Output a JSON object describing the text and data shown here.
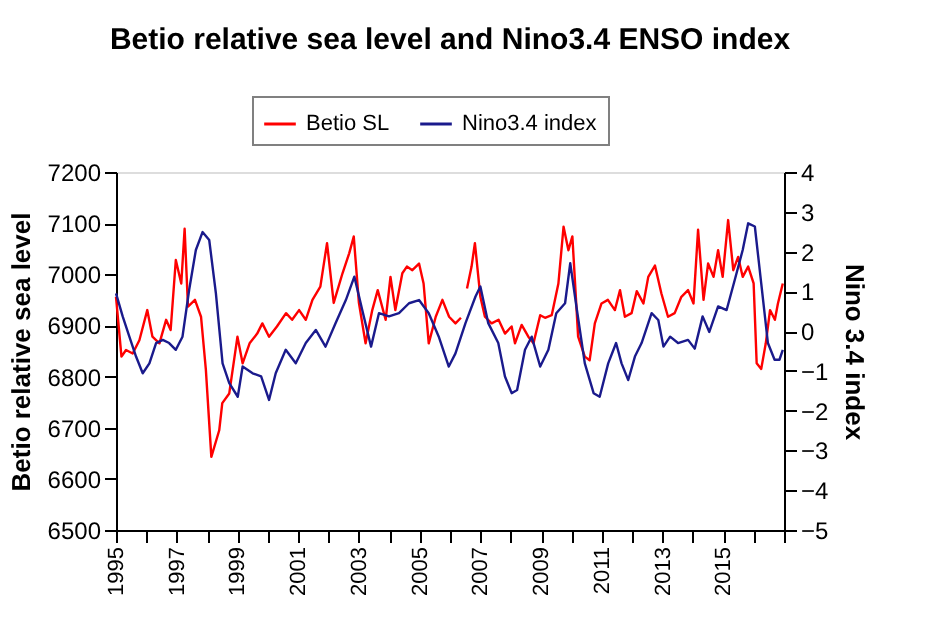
{
  "chart_data": {
    "type": "line",
    "title": "Betio relative sea level and Nino3.4 ENSO index",
    "ylabel": "Betio relative sea level",
    "y2label": "Nino 3.4 index",
    "xlim": [
      1995,
      2017
    ],
    "xticks": [
      1995,
      {
        "value": 1996,
        "label": null
      },
      1997,
      {
        "value": 1998,
        "label": null
      },
      1999,
      {
        "value": 2000,
        "label": null
      },
      2001,
      {
        "value": 2002,
        "label": null
      },
      2003,
      {
        "value": 2004,
        "label": null
      },
      2005,
      {
        "value": 2006,
        "label": null
      },
      2007,
      {
        "value": 2008,
        "label": null
      },
      2009,
      {
        "value": 2010,
        "label": null
      },
      2011,
      {
        "value": 2012,
        "label": null
      },
      2013,
      {
        "value": 2014,
        "label": null
      },
      2015,
      {
        "value": 2016,
        "label": null
      },
      {
        "value": 2017,
        "label": null
      }
    ],
    "ylim": [
      6500,
      7200
    ],
    "yticks": [
      6500,
      6600,
      6700,
      6800,
      6900,
      7000,
      7100,
      7200
    ],
    "y2lim": [
      -5,
      4
    ],
    "y2ticks": [
      -5,
      -4,
      -3,
      -2,
      -1,
      0,
      1,
      2,
      3,
      4
    ],
    "legend": "top",
    "grid": false,
    "series": [
      {
        "name": "Betio SL",
        "color": "#ff0000",
        "x": [
          1995.0,
          1995.18,
          1995.33,
          1995.55,
          1995.77,
          1996.03,
          1996.2,
          1996.43,
          1996.65,
          1996.8,
          1996.97,
          1997.15,
          1997.26,
          1997.37,
          1997.6,
          1997.8,
          1997.96,
          1998.14,
          1998.4,
          1998.5,
          1998.73,
          1999.0,
          1999.17,
          1999.4,
          1999.65,
          1999.82,
          2000.04,
          2000.3,
          2000.6,
          2000.8,
          2001.03,
          2001.25,
          2001.47,
          2001.73,
          2001.95,
          2002.17,
          2002.46,
          2002.68,
          2002.83,
          2003.0,
          2003.22,
          2003.44,
          2003.62,
          2003.88,
          2004.04,
          2004.2,
          2004.43,
          2004.58,
          2004.76,
          2004.98,
          2005.13,
          2005.3,
          2005.53,
          2005.75,
          2005.97,
          2006.18,
          2006.36,
          2006.46,
          2006.56,
          2006.71,
          2006.82,
          2007.0,
          2007.15,
          2007.37,
          2007.6,
          2007.81,
          2008.03,
          2008.14,
          2008.36,
          2008.58,
          2008.75,
          2008.97,
          2009.13,
          2009.35,
          2009.57,
          2009.74,
          2009.9,
          2010.03,
          2010.22,
          2010.44,
          2010.6,
          2010.77,
          2010.99,
          2011.2,
          2011.43,
          2011.6,
          2011.76,
          2011.98,
          2012.15,
          2012.37,
          2012.53,
          2012.75,
          2012.96,
          2013.18,
          2013.4,
          2013.62,
          2013.84,
          2014.02,
          2014.17,
          2014.35,
          2014.5,
          2014.68,
          2014.83,
          2014.98,
          2015.16,
          2015.33,
          2015.49,
          2015.64,
          2015.82,
          2016.0,
          2016.1,
          2016.25,
          2016.4,
          2016.54,
          2016.7,
          2016.8,
          2016.96
        ],
        "values": [
          6956,
          6839,
          6852,
          6845,
          6871,
          6930,
          6878,
          6865,
          6911,
          6891,
          7028,
          6982,
          7089,
          6937,
          6950,
          6917,
          6813,
          6643,
          6695,
          6748,
          6767,
          6878,
          6826,
          6865,
          6884,
          6904,
          6878,
          6898,
          6924,
          6911,
          6930,
          6911,
          6950,
          6976,
          7061,
          6944,
          7002,
          7041,
          7074,
          6944,
          6865,
          6930,
          6969,
          6911,
          6995,
          6930,
          7002,
          7015,
          7008,
          7021,
          6982,
          6865,
          6917,
          6950,
          6917,
          6904,
          6915,
          null,
          6972,
          7015,
          7061,
          6956,
          6917,
          6904,
          6911,
          6884,
          6898,
          6865,
          6901,
          6878,
          6865,
          6920,
          6915,
          6920,
          6982,
          7093,
          7047,
          7074,
          6878,
          6839,
          6832,
          6904,
          6943,
          6950,
          6930,
          6969,
          6917,
          6924,
          6967,
          6943,
          6995,
          7017,
          6963,
          6917,
          6924,
          6956,
          6969,
          6943,
          7087,
          6950,
          7021,
          6995,
          7047,
          6995,
          7106,
          7008,
          7034,
          6995,
          7015,
          6982,
          6826,
          6815,
          6865,
          6930,
          6911,
          6943,
          6982
        ]
      },
      {
        "name": "Nino3.4 index",
        "color": "#1a1a8c",
        "axis": "y2",
        "x": [
          1995.0,
          1995.22,
          1995.44,
          1995.66,
          1995.88,
          1996.1,
          1996.32,
          1996.54,
          1996.75,
          1996.97,
          1997.19,
          1997.41,
          1997.63,
          1997.85,
          1998.07,
          1998.29,
          1998.51,
          1998.73,
          1999.01,
          1999.17,
          1999.5,
          1999.78,
          2000.04,
          2000.26,
          2000.59,
          2000.92,
          2001.25,
          2001.58,
          2001.9,
          2002.23,
          2002.57,
          2002.85,
          2003.11,
          2003.4,
          2003.66,
          2003.99,
          2004.32,
          2004.65,
          2004.98,
          2005.3,
          2005.63,
          2005.96,
          2006.18,
          2006.51,
          2006.84,
          2007.0,
          2007.26,
          2007.59,
          2007.81,
          2008.03,
          2008.21,
          2008.47,
          2008.69,
          2008.97,
          2009.24,
          2009.5,
          2009.79,
          2009.96,
          2010.18,
          2010.44,
          2010.73,
          2010.93,
          2011.21,
          2011.47,
          2011.65,
          2011.87,
          2012.09,
          2012.31,
          2012.64,
          2012.86,
          2013.03,
          2013.25,
          2013.51,
          2013.84,
          2014.06,
          2014.32,
          2014.54,
          2014.83,
          2015.11,
          2015.38,
          2015.64,
          2015.82,
          2016.04,
          2016.25,
          2016.47,
          2016.69,
          2016.85,
          2016.96
        ],
        "values": [
          0.95,
          0.37,
          -0.14,
          -0.64,
          -1.06,
          -0.81,
          -0.3,
          -0.22,
          -0.3,
          -0.47,
          -0.14,
          1.04,
          2.04,
          2.49,
          2.29,
          0.95,
          -0.81,
          -1.31,
          -1.65,
          -0.89,
          -1.06,
          -1.14,
          -1.73,
          -1.06,
          -0.47,
          -0.81,
          -0.3,
          0.03,
          -0.39,
          0.2,
          0.78,
          1.37,
          0.53,
          -0.39,
          0.45,
          0.37,
          0.45,
          0.7,
          0.78,
          0.45,
          -0.14,
          -0.89,
          -0.56,
          0.2,
          0.87,
          1.12,
          0.2,
          -0.3,
          -1.14,
          -1.56,
          -1.48,
          -0.47,
          -0.14,
          -0.89,
          -0.47,
          0.45,
          0.7,
          1.71,
          0.53,
          -0.81,
          -1.56,
          -1.65,
          -0.81,
          -0.3,
          -0.81,
          -1.23,
          -0.64,
          -0.3,
          0.45,
          0.28,
          -0.39,
          -0.14,
          -0.3,
          -0.22,
          -0.44,
          0.37,
          -0.02,
          0.62,
          0.53,
          1.29,
          2.04,
          2.71,
          2.63,
          1.2,
          -0.3,
          -0.72,
          -0.72,
          -0.47
        ]
      }
    ]
  }
}
